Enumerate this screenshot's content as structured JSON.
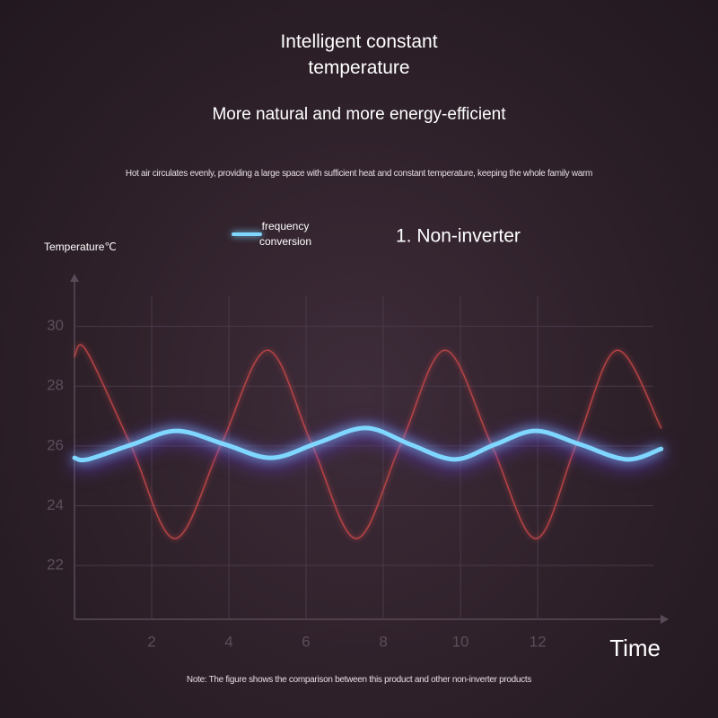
{
  "title": "Intelligent constant temperature",
  "subtitle": "More natural and more energy-efficient",
  "description": "Hot air circulates evenly, providing a large space with sufficient heat and constant temperature, keeping the whole family warm",
  "note": "Note: The figure shows the comparison between this product and other non-inverter products",
  "chart_data": {
    "type": "line",
    "y_label": "Temperature℃",
    "x_label": "Time",
    "xlim": [
      0,
      15.3
    ],
    "ylim": [
      20.2,
      31.7
    ],
    "xticks": [
      2,
      4,
      6,
      8,
      10,
      12
    ],
    "yticks": [
      22,
      24,
      26,
      28,
      30
    ],
    "grid": true,
    "series": [
      {
        "name": "frequency conversion",
        "color": "#7fd6ff",
        "x": [
          0,
          0.35,
          1.5,
          2.65,
          3.9,
          5.1,
          6.3,
          7.55,
          8.7,
          9.85,
          10.9,
          11.95,
          13.1,
          14.3,
          15.2
        ],
        "values": [
          25.6,
          25.55,
          26.05,
          26.5,
          26.05,
          25.6,
          26.1,
          26.6,
          26.05,
          25.55,
          26.05,
          26.5,
          26.05,
          25.55,
          25.9
        ]
      },
      {
        "name": "1. Non-inverter",
        "color": "#d24a4a",
        "x": [
          0,
          0.3,
          1.45,
          2.6,
          3.8,
          5.0,
          6.15,
          7.3,
          8.45,
          9.6,
          10.8,
          11.95,
          13.0,
          14.05,
          15.2
        ],
        "values": [
          29.0,
          29.2,
          26.05,
          22.9,
          26.05,
          29.2,
          26.05,
          22.9,
          26.05,
          29.2,
          26.05,
          22.9,
          26.05,
          29.2,
          26.6
        ]
      }
    ]
  }
}
